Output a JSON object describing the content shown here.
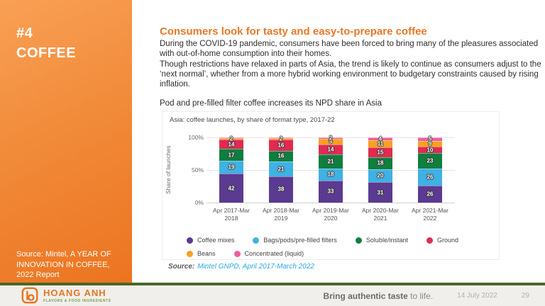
{
  "sidebar": {
    "number": "#4",
    "title": "COFFEE",
    "source": "Source: Mintel, A YEAR OF INNOVATION IN COFFEE, 2022 Report"
  },
  "main": {
    "heading": "Consumers look for tasty and easy-to-prepare coffee",
    "p1": "During the COVID-19 pandemic, consumers have been forced to bring many of the pleasures associated with out-of-home consumption into their homes.",
    "p2": "Though restrictions have relaxed in parts of Asia, the trend is likely to continue as consumers adjust to the ‘next normal’, whether from a more hybrid working environment to budgetary constraints caused by rising inflation.",
    "p3": "Pod and pre-filled filter coffee increases its NPD share in Asia",
    "chart_source_label": "Source:",
    "chart_source_text": "Mintel GNPD, April 2017-March 2022"
  },
  "chart_data": {
    "type": "bar",
    "stacked": true,
    "title": "Asia: coffee launches, by share of format type, 2017-22",
    "ylabel": "Share of launches",
    "ylim": [
      0,
      100
    ],
    "grid": true,
    "legend_position": "bottom",
    "yticks": [
      {
        "label": "100%",
        "value": 100
      },
      {
        "label": "50%",
        "value": 50
      },
      {
        "label": "0%",
        "value": 0
      }
    ],
    "categories": [
      "Apr 2017-Mar 2018",
      "Apr 2018-Mar 2019",
      "Apr 2019-Mar 2020",
      "Apr 2020-Mar 2021",
      "Apr 2021-Mar 2022"
    ],
    "series": [
      {
        "name": "Coffee mixes",
        "color": "#5b3a91",
        "values": [
          42,
          38,
          33,
          31,
          26
        ]
      },
      {
        "name": "Bags/pods/pre-filled filters",
        "color": "#3fb1e3",
        "values": [
          19,
          21,
          18,
          20,
          26
        ]
      },
      {
        "name": "Soluble/instant",
        "color": "#107e3e",
        "values": [
          17,
          16,
          21,
          18,
          23
        ]
      },
      {
        "name": "Ground",
        "color": "#e12a52",
        "values": [
          14,
          16,
          14,
          15,
          10
        ]
      },
      {
        "name": "Beans",
        "color": "#f7a11f",
        "values": [
          2,
          2,
          9,
          11,
          9
        ]
      },
      {
        "name": "Concentrated (liquid)",
        "color": "#ec5fa1",
        "values": [
          1,
          1,
          2,
          4,
          5
        ]
      }
    ],
    "legend_rows": [
      [
        0,
        1,
        2,
        3
      ],
      [
        4,
        5
      ]
    ]
  },
  "footer": {
    "logo_name": "HOANG ANH",
    "logo_sub": "FLAVORS & FOOD INGREDIENTS",
    "tagline_bold": "Bring authentic taste",
    "tagline_rest": " to life.",
    "date": "14 July 2022",
    "page": "29"
  },
  "colors": {
    "accent_orange": "#ec7420",
    "footer_green": "#4a6628",
    "source_blue": "#2aa8e0"
  }
}
